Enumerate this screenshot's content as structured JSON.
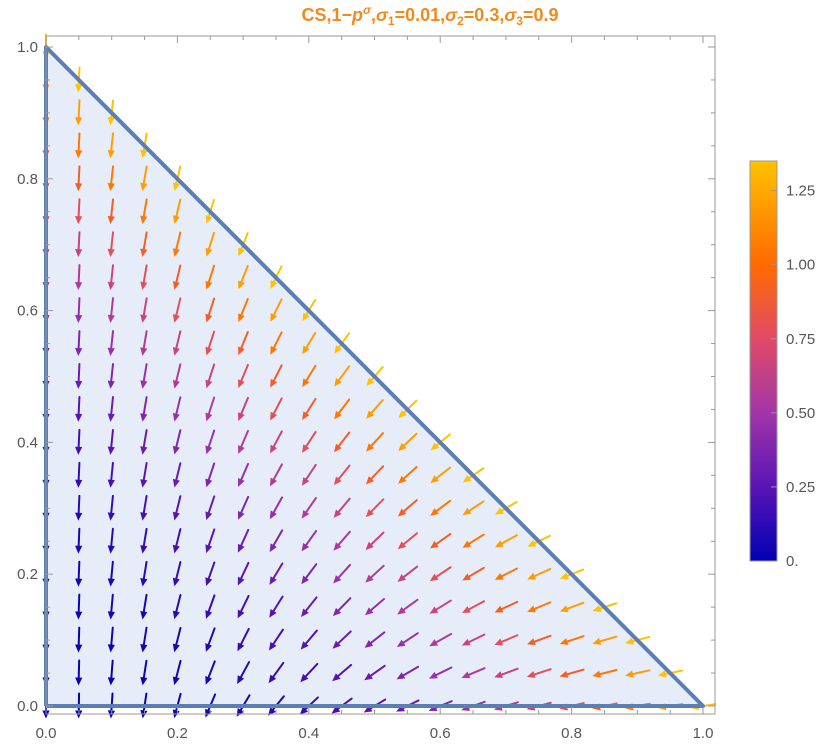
{
  "chart_data": {
    "type": "vector-field",
    "title": "CS,1−p^σ,σ₁=0.01,σ₂=0.3,σ₃=0.9",
    "title_parts": {
      "prefix": "CS,1−",
      "base": "p",
      "exponent": "σ",
      "sigma1_name": "σ",
      "sigma1_sub": "1",
      "sigma1_val": "=0.01,",
      "sigma2_name": "σ",
      "sigma2_sub": "2",
      "sigma2_val": "=0.3,",
      "sigma3_name": "σ",
      "sigma3_sub": "3",
      "sigma3_val": "=0.9"
    },
    "xlabel": "",
    "ylabel": "",
    "xlim": [
      0,
      1
    ],
    "ylim": [
      0,
      1
    ],
    "x_ticks": [
      {
        "value": 0.0,
        "label": "0.0"
      },
      {
        "value": 0.2,
        "label": "0.2"
      },
      {
        "value": 0.4,
        "label": "0.4"
      },
      {
        "value": 0.6,
        "label": "0.6"
      },
      {
        "value": 0.8,
        "label": "0.8"
      },
      {
        "value": 1.0,
        "label": "1.0"
      }
    ],
    "y_ticks": [
      {
        "value": 0.0,
        "label": "0.0"
      },
      {
        "value": 0.2,
        "label": "0.2"
      },
      {
        "value": 0.4,
        "label": "0.4"
      },
      {
        "value": 0.6,
        "label": "0.6"
      },
      {
        "value": 0.8,
        "label": "0.8"
      },
      {
        "value": 1.0,
        "label": "1.0"
      }
    ],
    "grid": false,
    "region": {
      "shape": "triangle",
      "vertices": [
        [
          0,
          0
        ],
        [
          1,
          0
        ],
        [
          0,
          1
        ]
      ],
      "fill_color": "#e6edf8",
      "edge_color": "#5b7fb5"
    },
    "arrow_grid_step": 0.05,
    "arrow_direction_model": "p = x + y; direction = (-x*p, -(0.15 + 0.85*y)); colour magnitude = p^2.6 * 1.35",
    "colorbar": {
      "min": 0,
      "max": 1.35,
      "ticks": [
        {
          "value": 0,
          "label": "0."
        },
        {
          "value": 0.25,
          "label": "0.25"
        },
        {
          "value": 0.5,
          "label": "0.50"
        },
        {
          "value": 0.75,
          "label": "0.75"
        },
        {
          "value": 1.0,
          "label": "1.00"
        },
        {
          "value": 1.25,
          "label": "1.25"
        }
      ],
      "gradient_stops": [
        {
          "value": 0.0,
          "color": "#0000b4"
        },
        {
          "value": 0.25,
          "color": "#5a14b4"
        },
        {
          "value": 0.5,
          "color": "#a235a8"
        },
        {
          "value": 0.75,
          "color": "#e04b66"
        },
        {
          "value": 1.0,
          "color": "#ff6a00"
        },
        {
          "value": 1.35,
          "color": "#ffc200"
        }
      ],
      "placement": "right"
    }
  }
}
